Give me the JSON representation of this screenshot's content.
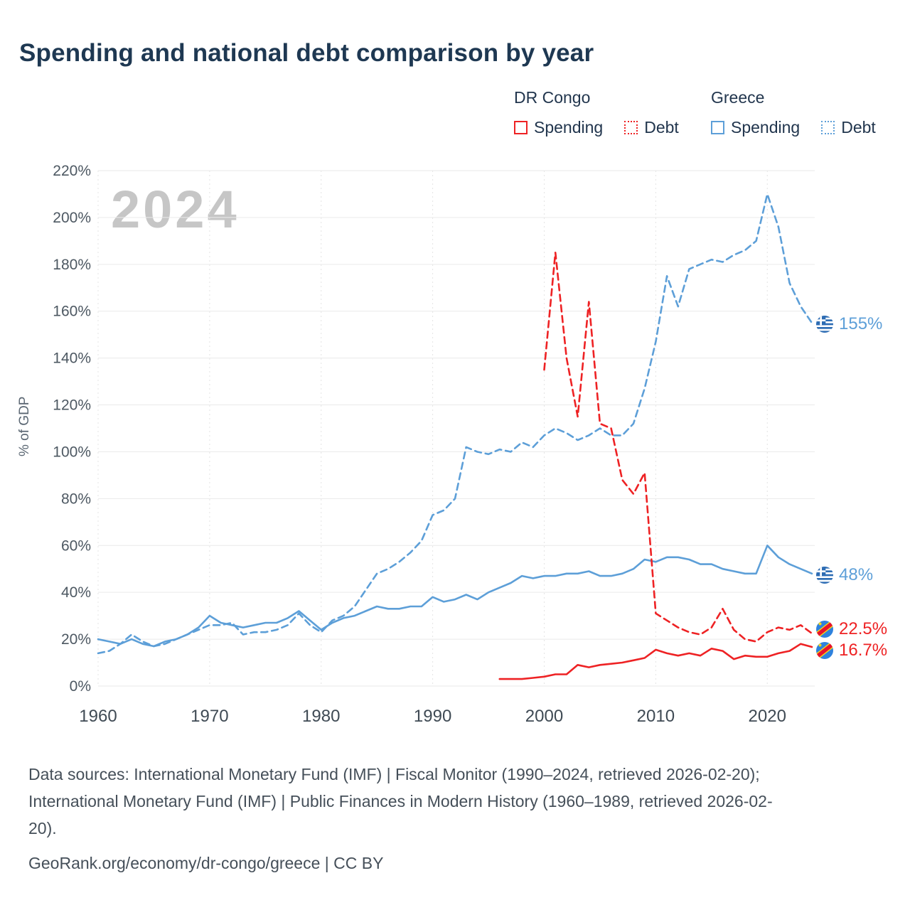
{
  "title": "Spending and national debt comparison by year",
  "watermark": "2024",
  "y_axis_label": "% of GDP",
  "colors": {
    "dr_congo": "#ee2224",
    "greece": "#5d9fd8",
    "grid": "#eaeaea",
    "title_text": "#1e3852",
    "axis_text": "#4d5862"
  },
  "legend": {
    "groups": [
      {
        "country": "DR Congo",
        "items": [
          {
            "label": "Spending",
            "line_style": "solid"
          },
          {
            "label": "Debt",
            "line_style": "dotted"
          }
        ]
      },
      {
        "country": "Greece",
        "items": [
          {
            "label": "Spending",
            "line_style": "solid"
          },
          {
            "label": "Debt",
            "line_style": "dotted"
          }
        ]
      }
    ]
  },
  "chart_data": {
    "type": "line",
    "title": "Spending and national debt comparison by year",
    "ylabel": "% of GDP",
    "grid": true,
    "x_axis": {
      "min": 1960,
      "max": 2024,
      "ticks": [
        1960,
        1970,
        1980,
        1990,
        2000,
        2010,
        2020
      ],
      "tick_labels": [
        "1960",
        "1970",
        "1980",
        "1990",
        "2000",
        "2010",
        "2020"
      ]
    },
    "y_axis": {
      "min": 0,
      "max": 220,
      "ticks": [
        0,
        20,
        40,
        60,
        80,
        100,
        120,
        140,
        160,
        180,
        200,
        220
      ],
      "tick_labels": [
        "0%",
        "20%",
        "40%",
        "60%",
        "80%",
        "100%",
        "120%",
        "140%",
        "160%",
        "180%",
        "200%",
        "220%"
      ]
    },
    "series": [
      {
        "id": "greece-spending",
        "name": "Greece Spending",
        "country": "Greece",
        "style": "solid",
        "color_key": "greece",
        "start_year": 1960,
        "values": [
          20,
          19,
          18,
          20,
          18,
          17,
          19,
          20,
          22,
          25,
          30,
          27,
          26,
          25,
          26,
          27,
          27,
          29,
          32,
          28,
          24,
          27,
          29,
          30,
          32,
          34,
          33,
          33,
          34,
          34,
          38,
          36,
          37,
          39,
          37,
          40,
          42,
          44,
          47,
          46,
          47,
          47,
          48,
          48,
          49,
          47,
          47,
          48,
          50,
          54,
          53,
          55,
          55,
          54,
          52,
          52,
          50,
          49,
          48,
          48,
          60,
          55,
          52,
          50,
          48
        ]
      },
      {
        "id": "greece-debt",
        "name": "Greece Debt",
        "country": "Greece",
        "style": "dashed",
        "color_key": "greece",
        "start_year": 1960,
        "values": [
          14,
          15,
          18,
          22,
          19,
          17,
          18,
          20,
          22,
          24,
          26,
          26,
          27,
          22,
          23,
          23,
          24,
          26,
          31,
          26,
          23,
          28,
          30,
          34,
          41,
          48,
          50,
          53,
          57,
          62,
          73,
          75,
          80,
          102,
          100,
          99,
          101,
          100,
          104,
          102,
          107,
          110,
          108,
          105,
          107,
          110,
          107,
          107,
          112,
          127,
          147,
          175,
          162,
          178,
          180,
          182,
          181,
          184,
          186,
          190,
          210,
          196,
          172,
          162,
          155
        ]
      },
      {
        "id": "dr-congo-spending",
        "name": "DR Congo Spending",
        "country": "DR Congo",
        "style": "solid",
        "color_key": "dr_congo",
        "start_year": 1996,
        "values": [
          3,
          3,
          3,
          3.5,
          4,
          5,
          5,
          9,
          8,
          9,
          9.5,
          10,
          11,
          12,
          15.5,
          14,
          13,
          14,
          13,
          16,
          15,
          11.5,
          13,
          12.5,
          12.5,
          14,
          15,
          18,
          16.7
        ]
      },
      {
        "id": "dr-congo-debt",
        "name": "DR Congo Debt",
        "country": "DR Congo",
        "style": "dashed",
        "color_key": "dr_congo",
        "start_year": 2000,
        "values": [
          135,
          185,
          140,
          115,
          164,
          112,
          110,
          88,
          82,
          91,
          31,
          28,
          25,
          23,
          22,
          25,
          33,
          24,
          20,
          19,
          23,
          25,
          24,
          26,
          22.5
        ]
      }
    ],
    "end_labels": [
      {
        "text": "155%",
        "series": "greece-debt",
        "flag": "greece-flag-icon"
      },
      {
        "text": "48%",
        "series": "greece-spending",
        "flag": "greece-flag-icon"
      },
      {
        "text": "22.5%",
        "series": "dr-congo-debt",
        "flag": "dr-congo-flag-icon"
      },
      {
        "text": "16.7%",
        "series": "dr-congo-spending",
        "flag": "dr-congo-flag-icon"
      }
    ]
  },
  "footer": {
    "source_lines": [
      "Data sources: International Monetary Fund (IMF) | Fiscal Monitor (1990–2024, retrieved 2026-02-20);",
      "International Monetary Fund (IMF) | Public Finances in Modern History (1960–1989, retrieved 2026-02-",
      "20)."
    ],
    "attribution": "GeoRank.org/economy/dr-congo/greece | CC BY"
  }
}
